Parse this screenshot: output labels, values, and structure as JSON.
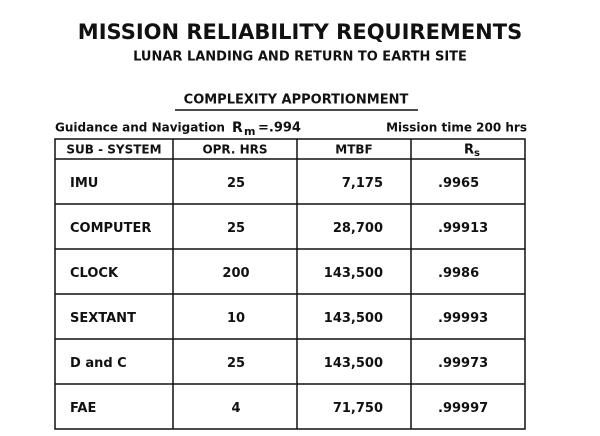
{
  "header": {
    "title": "MISSION RELIABILITY REQUIREMENTS",
    "subtitle": "LUNAR LANDING AND RETURN TO EARTH SITE",
    "section": "COMPLEXITY APPORTIONMENT"
  },
  "info": {
    "system": "Guidance and Navigation",
    "symbol": "R",
    "subscript": "m",
    "requirement": "=.994",
    "mission_time": "Mission time 200 hrs"
  },
  "table": {
    "columns": [
      "SUB - SYSTEM",
      "OPR. HRS",
      "MTBF",
      "R",
      "s"
    ],
    "rows": [
      [
        "IMU",
        "25",
        "7,175",
        ".9965"
      ],
      [
        "COMPUTER",
        "25",
        "28,700",
        ".99913"
      ],
      [
        "CLOCK",
        "200",
        "143,500",
        ".9986"
      ],
      [
        "SEXTANT",
        "10",
        "143,500",
        ".99993"
      ],
      [
        "D and C",
        "25",
        "143,500",
        ".99973"
      ],
      [
        "FAE",
        "4",
        "71,750",
        ".99997"
      ]
    ]
  }
}
